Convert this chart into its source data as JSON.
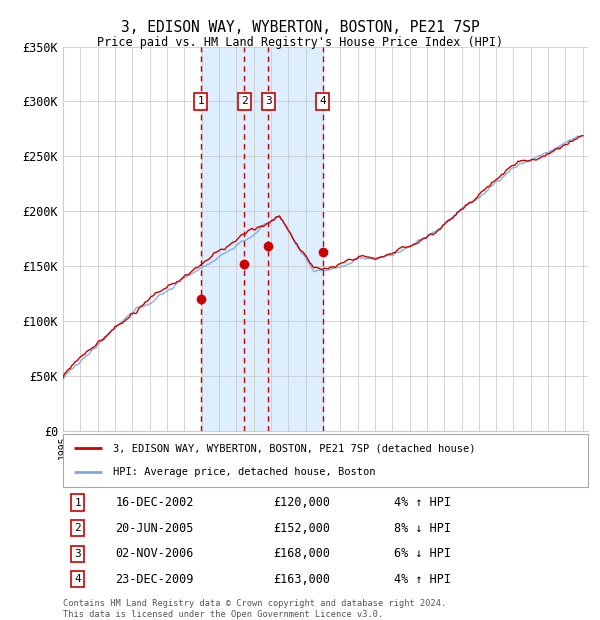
{
  "title": "3, EDISON WAY, WYBERTON, BOSTON, PE21 7SP",
  "subtitle": "Price paid vs. HM Land Registry's House Price Index (HPI)",
  "x_start_year": 1995,
  "x_end_year": 2025,
  "y_min": 0,
  "y_max": 350000,
  "y_ticks": [
    0,
    50000,
    100000,
    150000,
    200000,
    250000,
    300000,
    350000
  ],
  "y_tick_labels": [
    "£0",
    "£50K",
    "£100K",
    "£150K",
    "£200K",
    "£250K",
    "£300K",
    "£350K"
  ],
  "transactions": [
    {
      "label": "1",
      "date": "16-DEC-2002",
      "price": 120000,
      "hpi_diff": "4% ↑ HPI"
    },
    {
      "label": "2",
      "date": "20-JUN-2005",
      "price": 152000,
      "hpi_diff": "8% ↓ HPI"
    },
    {
      "label": "3",
      "date": "02-NOV-2006",
      "price": 168000,
      "hpi_diff": "6% ↓ HPI"
    },
    {
      "label": "4",
      "date": "23-DEC-2009",
      "price": 163000,
      "hpi_diff": "4% ↑ HPI"
    }
  ],
  "trans_years": [
    2002.96,
    2005.46,
    2006.84,
    2009.98
  ],
  "line_color_red": "#cc0000",
  "line_color_blue": "#7aaadd",
  "shade_color": "#ddeeff",
  "dashed_color": "#cc0000",
  "legend_label_red": "3, EDISON WAY, WYBERTON, BOSTON, PE21 7SP (detached house)",
  "legend_label_blue": "HPI: Average price, detached house, Boston",
  "footnote": "Contains HM Land Registry data © Crown copyright and database right 2024.\nThis data is licensed under the Open Government Licence v3.0.",
  "background_color": "#ffffff",
  "grid_color": "#cccccc"
}
